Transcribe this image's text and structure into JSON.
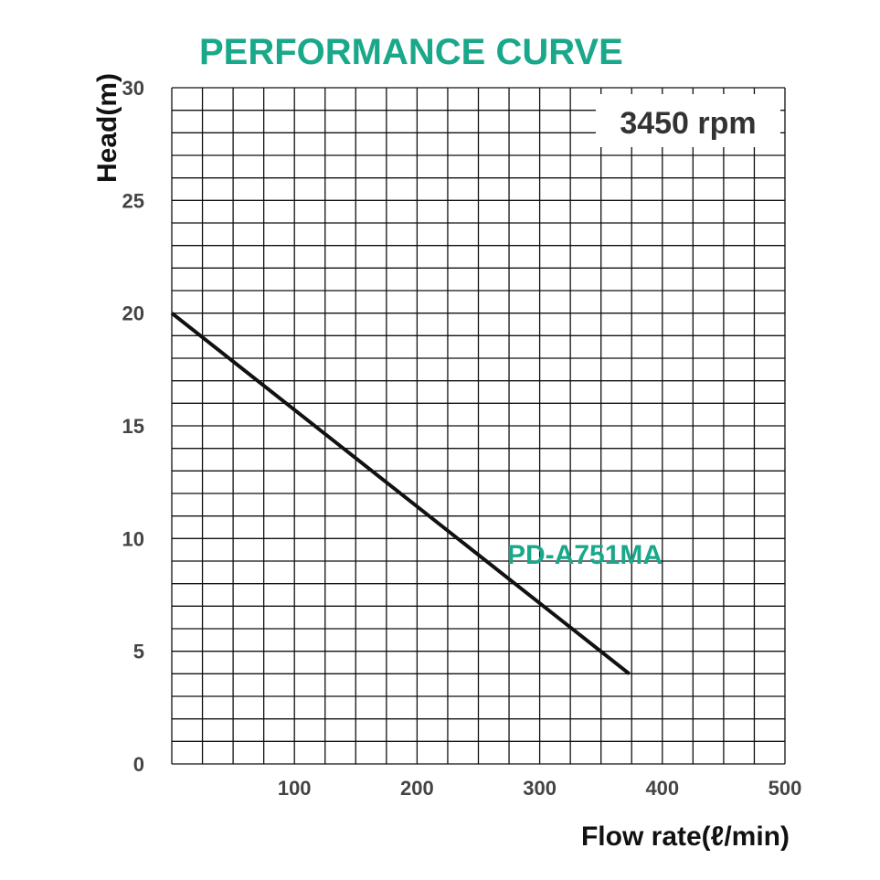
{
  "chart_data": {
    "type": "line",
    "title": "PERFORMANCE CURVE",
    "xlabel": "Flow rate(ℓ/min)",
    "ylabel": "Head(m)",
    "xlim": [
      0,
      500
    ],
    "ylim": [
      0,
      30
    ],
    "x_ticks": [
      100,
      200,
      300,
      400,
      500
    ],
    "y_ticks": [
      0,
      5,
      10,
      15,
      20,
      25,
      30
    ],
    "grid": true,
    "annotation": "3450 rpm",
    "series": [
      {
        "name": "PD-A751MA",
        "x": [
          0,
          373
        ],
        "y": [
          20,
          4
        ]
      }
    ]
  },
  "colors": {
    "title": "#1aa88a",
    "series_label": "#1aa88a",
    "line": "#111111",
    "grid": "#111111"
  }
}
